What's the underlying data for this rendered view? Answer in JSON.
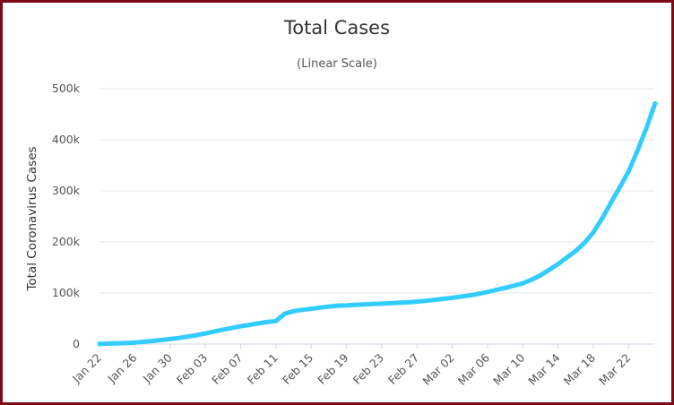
{
  "chart_data": {
    "type": "line",
    "title": "Total Cases",
    "subtitle": "(Linear Scale)",
    "ylabel": "Total Coronavirus Cases",
    "xlabel": "",
    "ylim": [
      0,
      500000
    ],
    "yticks": [
      0,
      100000,
      200000,
      300000,
      400000,
      500000
    ],
    "ytick_labels": [
      "0",
      "100k",
      "200k",
      "300k",
      "400k",
      "500k"
    ],
    "xtick_labels": [
      "Jan 22",
      "Jan 26",
      "Jan 30",
      "Feb 03",
      "Feb 07",
      "Feb 11",
      "Feb 15",
      "Feb 19",
      "Feb 23",
      "Feb 27",
      "Mar 02",
      "Mar 06",
      "Mar 10",
      "Mar 14",
      "Mar 18",
      "Mar 22"
    ],
    "grid": true,
    "line_color": "#33ccff",
    "x_start": "Jan 22",
    "x_end": "Mar 25",
    "series": [
      {
        "values": [
          580,
          845,
          1317,
          2015,
          2800,
          4581,
          6058,
          7813,
          9823,
          11950,
          14553,
          17391,
          20630,
          24545,
          28266,
          31439,
          34876,
          37552,
          40553,
          43099,
          45134,
          59287,
          64438,
          67100,
          69197,
          71329,
          73332,
          75184,
          75700,
          76677,
          77673,
          78651,
          79205,
          80087,
          80828,
          81820,
          83112,
          84615,
          86604,
          88585,
          90443,
          93016,
          95314,
          98425,
          102050,
          106099,
          109991,
          114381,
          118948,
          126214,
          134576,
          145483,
          156653,
          169593,
          182490,
          198238,
          218822,
          246088,
          277117,
          307280,
          338235,
          378435,
          422492,
          471035
        ]
      }
    ]
  }
}
